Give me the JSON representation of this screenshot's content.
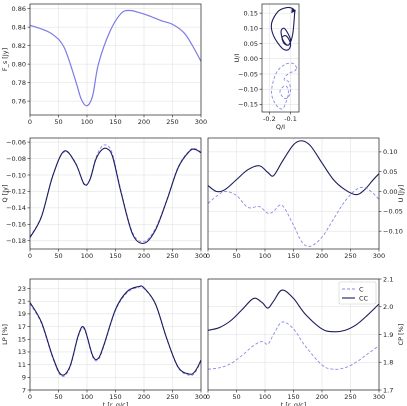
{
  "colors": {
    "C": "#8a8ae8",
    "CC": "#1c1c5c",
    "single": "#7b7be6"
  },
  "chart_data": [
    {
      "id": "fs",
      "type": "line",
      "ylabel": "F_s [Jy]",
      "xlim": [
        0,
        300
      ],
      "ylim": [
        0.745,
        0.865
      ],
      "xticks": [
        0,
        50,
        100,
        150,
        200,
        250,
        300
      ],
      "yticks": [
        0.76,
        0.78,
        0.8,
        0.82,
        0.84,
        0.86
      ],
      "ytick_labels": [
        "0.76",
        "0.78",
        "0.80",
        "0.82",
        "0.84",
        "0.86"
      ],
      "grid": true,
      "series": [
        {
          "style": "single",
          "x": [
            0,
            20,
            40,
            60,
            80,
            90,
            100,
            110,
            120,
            140,
            160,
            175,
            190,
            210,
            230,
            250,
            270,
            285,
            300
          ],
          "y": [
            0.842,
            0.838,
            0.832,
            0.818,
            0.782,
            0.762,
            0.755,
            0.766,
            0.8,
            0.835,
            0.855,
            0.858,
            0.856,
            0.852,
            0.847,
            0.843,
            0.834,
            0.82,
            0.803
          ]
        }
      ]
    },
    {
      "id": "qu",
      "type": "line",
      "xlabel": "Q/I",
      "ylabel": "U/I",
      "xlim": [
        -0.235,
        -0.06
      ],
      "ylim": [
        -0.175,
        0.18
      ],
      "xticks": [
        -0.2,
        -0.1
      ],
      "xtick_labels": [
        "-0.2",
        "-0.1"
      ],
      "yticks": [
        -0.15,
        -0.1,
        -0.05,
        0.0,
        0.05,
        0.1,
        0.15
      ],
      "ytick_labels": [
        "−0.15",
        "−0.10",
        "−0.05",
        "0.00",
        "0.05",
        "0.10",
        "0.15"
      ],
      "grid": true,
      "series": [
        {
          "style": "CC",
          "closed": true,
          "x": [
            -0.08,
            -0.09,
            -0.12,
            -0.16,
            -0.19,
            -0.18,
            -0.14,
            -0.11,
            -0.1,
            -0.12,
            -0.14,
            -0.13,
            -0.11,
            -0.1,
            -0.11,
            -0.13,
            -0.145,
            -0.135,
            -0.11,
            -0.09,
            -0.08
          ],
          "y": [
            0.155,
            0.165,
            0.168,
            0.155,
            0.115,
            0.075,
            0.035,
            0.03,
            0.05,
            0.075,
            0.07,
            0.05,
            0.045,
            0.06,
            0.08,
            0.1,
            0.09,
            0.06,
            0.045,
            0.08,
            0.155
          ]
        },
        {
          "style": "C",
          "closed": true,
          "x": [
            -0.07,
            -0.09,
            -0.13,
            -0.17,
            -0.19,
            -0.17,
            -0.14,
            -0.12,
            -0.11,
            -0.12,
            -0.14,
            -0.15,
            -0.13,
            -0.11,
            -0.1,
            -0.11,
            -0.13,
            -0.12,
            -0.1,
            -0.08,
            -0.07
          ],
          "y": [
            -0.03,
            -0.015,
            -0.02,
            -0.05,
            -0.11,
            -0.15,
            -0.165,
            -0.14,
            -0.11,
            -0.09,
            -0.095,
            -0.11,
            -0.13,
            -0.125,
            -0.1,
            -0.075,
            -0.07,
            -0.055,
            -0.045,
            -0.04,
            -0.03
          ]
        }
      ]
    },
    {
      "id": "q",
      "type": "line",
      "ylabel": "Q [Jy]",
      "xlim": [
        0,
        300
      ],
      "ylim": [
        -0.19,
        -0.055
      ],
      "xticks": [
        0,
        50,
        100,
        150,
        200,
        250,
        300
      ],
      "yticks": [
        -0.18,
        -0.16,
        -0.14,
        -0.12,
        -0.1,
        -0.08,
        -0.06
      ],
      "ytick_labels": [
        "−0.18",
        "−0.16",
        "−0.14",
        "−0.12",
        "−0.10",
        "−0.08",
        "−0.06"
      ],
      "grid": true,
      "series": [
        {
          "style": "C",
          "x": [
            0,
            20,
            40,
            60,
            80,
            95,
            105,
            115,
            125,
            135,
            145,
            160,
            180,
            200,
            220,
            240,
            260,
            280,
            290,
            300
          ],
          "y": [
            -0.175,
            -0.15,
            -0.1,
            -0.072,
            -0.085,
            -0.112,
            -0.105,
            -0.08,
            -0.066,
            -0.064,
            -0.075,
            -0.12,
            -0.17,
            -0.181,
            -0.165,
            -0.13,
            -0.09,
            -0.07,
            -0.068,
            -0.072
          ]
        },
        {
          "style": "CC",
          "x": [
            0,
            20,
            40,
            60,
            80,
            95,
            105,
            115,
            125,
            135,
            145,
            160,
            180,
            200,
            220,
            240,
            260,
            280,
            290,
            300
          ],
          "y": [
            -0.176,
            -0.151,
            -0.101,
            -0.071,
            -0.086,
            -0.111,
            -0.106,
            -0.082,
            -0.07,
            -0.068,
            -0.078,
            -0.122,
            -0.172,
            -0.183,
            -0.167,
            -0.131,
            -0.091,
            -0.071,
            -0.069,
            -0.073
          ]
        }
      ]
    },
    {
      "id": "u",
      "type": "line",
      "ylabel": "U [Jy]",
      "xlim": [
        0,
        300
      ],
      "ylim": [
        -0.145,
        0.135
      ],
      "xticks": [
        0,
        50,
        100,
        150,
        200,
        250,
        300
      ],
      "yticks": [
        -0.1,
        -0.05,
        0.0,
        0.05,
        0.1
      ],
      "ytick_labels": [
        "−0.10",
        "−0.05",
        "0.00",
        "0.05",
        "0.10"
      ],
      "yaxis_side": "right",
      "grid": true,
      "series": [
        {
          "style": "CC",
          "x": [
            0,
            15,
            30,
            50,
            70,
            90,
            105,
            115,
            130,
            150,
            165,
            180,
            200,
            220,
            240,
            260,
            275,
            290,
            300
          ],
          "y": [
            0.015,
            0.0,
            0.005,
            0.03,
            0.055,
            0.065,
            0.048,
            0.04,
            0.075,
            0.118,
            0.128,
            0.115,
            0.072,
            0.03,
            0.005,
            -0.008,
            0.005,
            0.03,
            0.045
          ]
        },
        {
          "style": "C",
          "x": [
            0,
            15,
            30,
            50,
            70,
            90,
            105,
            115,
            130,
            150,
            165,
            180,
            200,
            220,
            240,
            260,
            275,
            290,
            300
          ],
          "y": [
            -0.03,
            -0.012,
            0.0,
            -0.01,
            -0.04,
            -0.038,
            -0.055,
            -0.05,
            -0.035,
            -0.085,
            -0.128,
            -0.138,
            -0.115,
            -0.07,
            -0.025,
            0.005,
            0.01,
            -0.005,
            -0.02
          ]
        }
      ]
    },
    {
      "id": "lp",
      "type": "line",
      "xlabel": "t [r_g/c]",
      "ylabel": "LP [%]",
      "xlim": [
        0,
        300
      ],
      "ylim": [
        7,
        24.5
      ],
      "xticks": [
        0,
        50,
        100,
        150,
        200,
        250,
        300
      ],
      "yticks": [
        7,
        9,
        11,
        13,
        15,
        17,
        19,
        21,
        23
      ],
      "ytick_labels": [
        "7",
        "9",
        "11",
        "13",
        "15",
        "17",
        "19",
        "21",
        "23"
      ],
      "grid": true,
      "series": [
        {
          "style": "C",
          "x": [
            0,
            20,
            40,
            55,
            70,
            85,
            95,
            110,
            120,
            130,
            150,
            170,
            190,
            200,
            220,
            240,
            260,
            280,
            290,
            300
          ],
          "y": [
            20.6,
            17.5,
            12.0,
            9.2,
            10.5,
            15.5,
            16.6,
            12.2,
            11.8,
            14.0,
            19.5,
            22.3,
            23.2,
            23.0,
            20.5,
            15.0,
            10.5,
            9.3,
            9.8,
            11.5
          ]
        },
        {
          "style": "CC",
          "x": [
            0,
            20,
            40,
            55,
            70,
            85,
            95,
            110,
            120,
            130,
            150,
            170,
            190,
            200,
            220,
            240,
            260,
            280,
            290,
            300
          ],
          "y": [
            20.8,
            17.7,
            12.2,
            9.4,
            10.7,
            15.7,
            16.8,
            12.4,
            12.0,
            14.2,
            19.7,
            22.5,
            23.3,
            23.1,
            20.6,
            15.1,
            10.6,
            9.5,
            10.0,
            11.7
          ]
        }
      ]
    },
    {
      "id": "cp",
      "type": "line",
      "xlabel": "t [r_g/c]",
      "ylabel": "CP [%]",
      "xlim": [
        0,
        300
      ],
      "ylim": [
        1.7,
        2.1
      ],
      "xticks": [
        0,
        50,
        100,
        150,
        200,
        250,
        300
      ],
      "yticks": [
        1.7,
        1.8,
        1.9,
        2.0,
        2.1
      ],
      "ytick_labels": [
        "1.7",
        "1.8",
        "1.9",
        "2.0",
        "2.1"
      ],
      "yaxis_side": "right",
      "grid": true,
      "legend": {
        "placement": "top-right",
        "entries": [
          "C",
          "CC"
        ]
      },
      "series": [
        {
          "name": "C",
          "style": "C",
          "x": [
            0,
            20,
            40,
            60,
            80,
            95,
            105,
            115,
            130,
            150,
            170,
            200,
            220,
            240,
            260,
            280,
            300
          ],
          "y": [
            1.775,
            1.78,
            1.795,
            1.825,
            1.86,
            1.875,
            1.865,
            1.9,
            1.945,
            1.92,
            1.86,
            1.79,
            1.775,
            1.78,
            1.8,
            1.83,
            1.86
          ]
        },
        {
          "name": "CC",
          "style": "CC",
          "x": [
            0,
            20,
            40,
            60,
            80,
            95,
            105,
            115,
            130,
            150,
            170,
            200,
            220,
            240,
            260,
            280,
            300
          ],
          "y": [
            1.915,
            1.925,
            1.95,
            1.99,
            2.03,
            2.015,
            1.995,
            2.02,
            2.06,
            2.03,
            1.975,
            1.92,
            1.91,
            1.915,
            1.935,
            1.97,
            2.01
          ]
        }
      ]
    }
  ]
}
